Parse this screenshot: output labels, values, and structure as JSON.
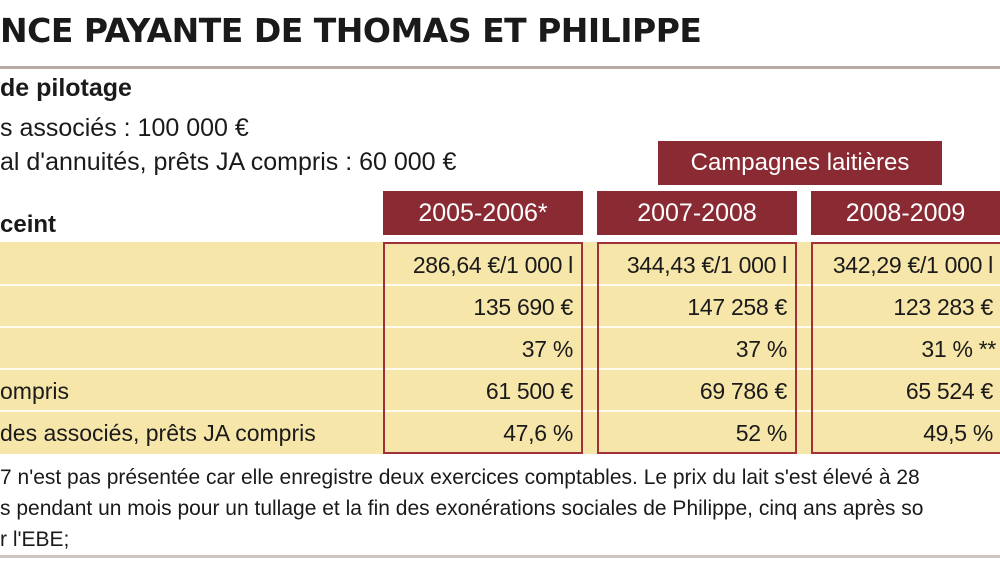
{
  "title": "NCE PAYANTE DE THOMAS ET PHILIPPE",
  "subheading": "de pilotage",
  "info": [
    "s associés : 100 000 €",
    "al d'annuités, prêts JA compris : 60 000 €"
  ],
  "campaign_banner": "Campagnes laitières",
  "section_label": "ceint",
  "columns": [
    "2005-2006*",
    "2007-2008",
    "2008-2009"
  ],
  "rows": [
    {
      "label": "",
      "values": [
        "286,64 €/1 000 l",
        "344,43 €/1 000 l",
        "342,29 €/1 000 l"
      ]
    },
    {
      "label": "",
      "values": [
        "135 690 €",
        "147 258 €",
        "123 283 €"
      ]
    },
    {
      "label": "",
      "values": [
        "37 %",
        "37 %",
        "31 % **"
      ]
    },
    {
      "label": "ompris",
      "values": [
        "61 500 €",
        "69 786 €",
        "65 524 €"
      ]
    },
    {
      "label": "des associés, prêts JA compris",
      "values": [
        "47,6 %",
        "52 %",
        "49,5 %"
      ]
    }
  ],
  "footnotes": [
    "7 n'est pas présentée car elle enregistre deux exercices comptables. Le prix du lait s'est élevé à 28",
    "s pendant un mois pour un tullage et la fin des exonérations sociales de Philippe, cinq ans après so",
    "r l'EBE;"
  ],
  "colors": {
    "accent": "#8a2a33",
    "band": "#f7e6a9",
    "box_border": "#a0303a"
  }
}
